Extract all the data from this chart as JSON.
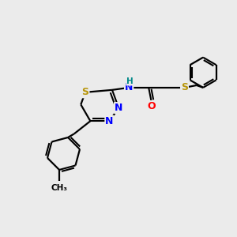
{
  "bg_color": "#ebebeb",
  "atom_colors": {
    "S": "#b8960c",
    "N": "#0000ff",
    "O": "#ff0000",
    "C": "#000000",
    "H": "#008888"
  },
  "bond_color": "#000000",
  "fig_size": [
    3.0,
    3.0
  ],
  "dpi": 100,
  "xlim": [
    0,
    10
  ],
  "ylim": [
    0,
    10
  ]
}
